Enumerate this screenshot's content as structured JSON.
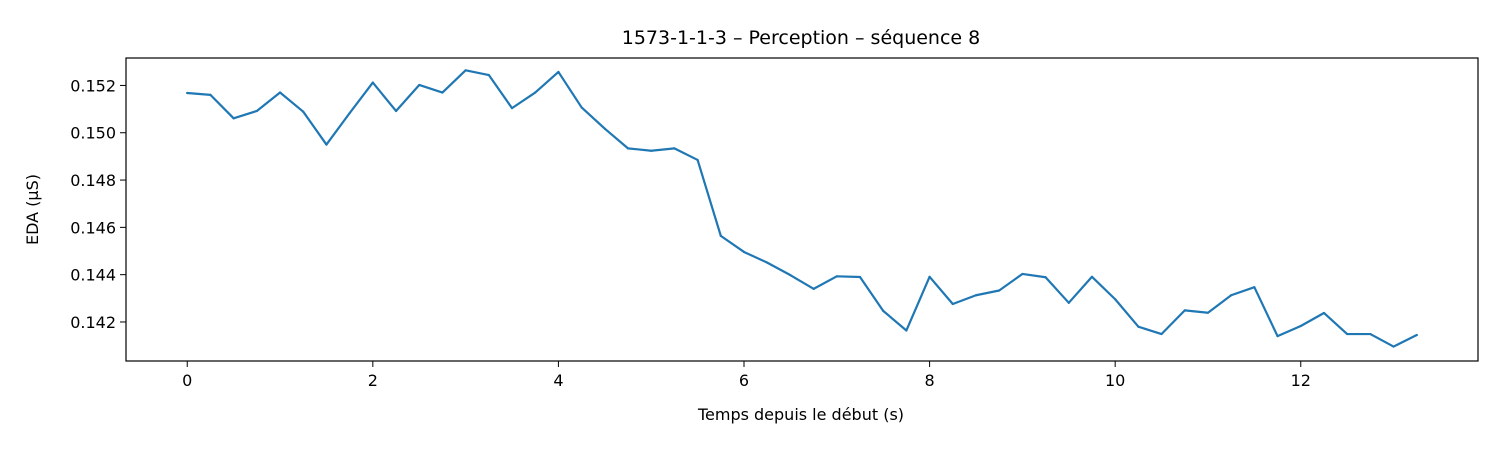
{
  "chart_data": {
    "type": "line",
    "title": "1573-1-1-3 – Perception – séquence 8",
    "xlabel": "Temps depuis le début (s)",
    "ylabel": "EDA (µS)",
    "xlim": [
      -0.66,
      13.91
    ],
    "ylim": [
      0.14035,
      0.15316
    ],
    "x_ticks": [
      0,
      2,
      4,
      6,
      8,
      10,
      12
    ],
    "x_tick_labels": [
      "0",
      "2",
      "4",
      "6",
      "8",
      "10",
      "12"
    ],
    "y_ticks": [
      0.142,
      0.144,
      0.146,
      0.148,
      0.15,
      0.152
    ],
    "y_tick_labels": [
      "0.142",
      "0.144",
      "0.146",
      "0.148",
      "0.150",
      "0.152"
    ],
    "grid": false,
    "series": [
      {
        "color": "#1f77b4",
        "x": [
          0,
          0.25,
          0.5,
          0.75,
          1.0,
          1.25,
          1.5,
          1.75,
          2.0,
          2.25,
          2.5,
          2.75,
          3.0,
          3.25,
          3.5,
          3.75,
          4.0,
          4.25,
          4.5,
          4.75,
          5.0,
          5.25,
          5.5,
          5.75,
          6.0,
          6.25,
          6.5,
          6.75,
          7.0,
          7.25,
          7.5,
          7.75,
          8.0,
          8.25,
          8.5,
          8.75,
          9.0,
          9.25,
          9.5,
          9.75,
          10.0,
          10.25,
          10.5,
          10.75,
          11.0,
          11.25,
          11.5,
          11.75,
          12.0,
          12.25,
          12.5,
          12.75,
          13.0,
          13.25
        ],
        "y": [
          0.15168,
          0.1516,
          0.15061,
          0.15092,
          0.1517,
          0.15089,
          0.1495,
          0.15083,
          0.15212,
          0.15092,
          0.15202,
          0.1517,
          0.15264,
          0.15244,
          0.15104,
          0.1517,
          0.15257,
          0.15107,
          0.15017,
          0.14934,
          0.14924,
          0.14934,
          0.14885,
          0.14564,
          0.14496,
          0.14451,
          0.14398,
          0.1434,
          0.14393,
          0.1439,
          0.14247,
          0.14164,
          0.14391,
          0.14276,
          0.14313,
          0.14333,
          0.14403,
          0.14389,
          0.14281,
          0.14391,
          0.14296,
          0.1418,
          0.14149,
          0.14249,
          0.14239,
          0.14313,
          0.14347,
          0.1414,
          0.14183,
          0.14238,
          0.14149,
          0.14149,
          0.14096,
          0.14145
        ]
      }
    ]
  }
}
